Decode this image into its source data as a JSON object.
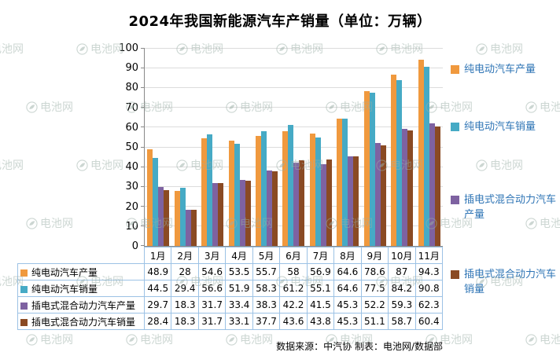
{
  "title": "2024年我国新能源汽车产销量（单位：万辆）",
  "watermark": "电池网",
  "footer": "数据来源：中汽协    制表：电池网/数据部",
  "colors": {
    "legend_text": "#2E74B5",
    "gridline": "#DCDCDC",
    "axis": "#898989",
    "table_border": "#9CC2E5",
    "watermark": "#9AAFA6"
  },
  "chart_data": {
    "type": "bar",
    "title": "2024年我国新能源汽车产销量（单位：万辆）",
    "unit": "万辆",
    "categories": [
      "1月",
      "2月",
      "3月",
      "4月",
      "5月",
      "6月",
      "7月",
      "8月",
      "9月",
      "10月",
      "11月"
    ],
    "series": [
      {
        "name": "纯电动汽车产量",
        "color": "#F0993E",
        "values": [
          48.9,
          28,
          54.6,
          53.5,
          55.7,
          58,
          56.9,
          64.6,
          78.6,
          87,
          94.3
        ]
      },
      {
        "name": "纯电动汽车销量",
        "color": "#46AAC5",
        "values": [
          44.5,
          29.4,
          56.6,
          51.9,
          58.3,
          61.2,
          55.1,
          64.6,
          77.5,
          84.2,
          90.8
        ]
      },
      {
        "name": "插电式混合动力汽车产量",
        "color": "#7E62A1",
        "values": [
          29.7,
          18.3,
          31.7,
          33.4,
          38.3,
          42.2,
          41.5,
          45.3,
          52.2,
          59.3,
          62.3
        ]
      },
      {
        "name": "插电式混合动力汽车销量",
        "color": "#8A4A23",
        "values": [
          28.4,
          18.3,
          31.7,
          33.1,
          37.7,
          43.6,
          43.8,
          45.3,
          51.1,
          58.7,
          60.4
        ]
      }
    ],
    "ylim": [
      0,
      100
    ],
    "ytick_step": 10,
    "grid": true,
    "legend_position": "right"
  }
}
